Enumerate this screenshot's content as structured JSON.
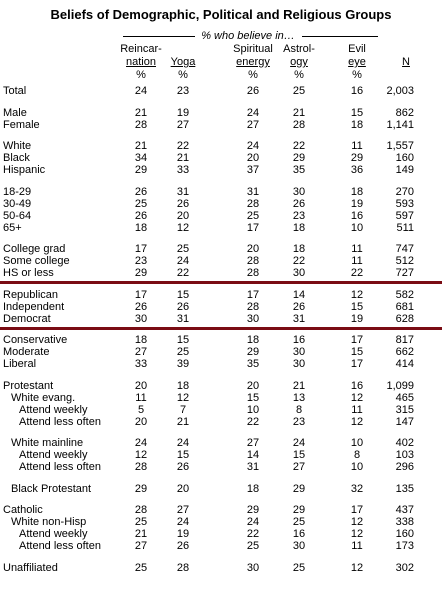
{
  "title": "Beliefs of Demographic, Political and Religious Groups",
  "header": {
    "super": "% who believe in…",
    "columns": [
      {
        "line1": "Reincar-",
        "line2": "nation",
        "unit": "%"
      },
      {
        "line2": "Yoga",
        "unit": "%"
      },
      {
        "line1": "Spiritual",
        "line2": "energy",
        "unit": "%"
      },
      {
        "line1": "Astrol-",
        "line2": "ogy",
        "unit": "%"
      },
      {
        "line1": "Evil",
        "line2": "eye",
        "unit": "%"
      },
      {
        "line2": "N"
      }
    ]
  },
  "groups": [
    {
      "rows": [
        {
          "label": "Total",
          "values": [
            24,
            23,
            26,
            25,
            16
          ],
          "n": "2,003"
        }
      ]
    },
    {
      "rows": [
        {
          "label": "Male",
          "values": [
            21,
            19,
            24,
            21,
            15
          ],
          "n": "862"
        },
        {
          "label": "Female",
          "values": [
            28,
            27,
            27,
            28,
            18
          ],
          "n": "1,141"
        }
      ]
    },
    {
      "rows": [
        {
          "label": "White",
          "values": [
            21,
            22,
            24,
            22,
            11
          ],
          "n": "1,557"
        },
        {
          "label": "Black",
          "values": [
            34,
            21,
            20,
            29,
            29
          ],
          "n": "160"
        },
        {
          "label": "Hispanic",
          "values": [
            29,
            33,
            37,
            35,
            36
          ],
          "n": "149"
        }
      ]
    },
    {
      "rows": [
        {
          "label": "18-29",
          "values": [
            26,
            31,
            31,
            30,
            18
          ],
          "n": "270"
        },
        {
          "label": "30-49",
          "values": [
            25,
            26,
            28,
            26,
            19
          ],
          "n": "593"
        },
        {
          "label": "50-64",
          "values": [
            26,
            20,
            25,
            23,
            16
          ],
          "n": "597"
        },
        {
          "label": "65+",
          "values": [
            18,
            12,
            17,
            18,
            10
          ],
          "n": "511"
        }
      ]
    },
    {
      "rows": [
        {
          "label": "College grad",
          "values": [
            17,
            25,
            20,
            18,
            11
          ],
          "n": "747"
        },
        {
          "label": "Some college",
          "values": [
            23,
            24,
            28,
            22,
            11
          ],
          "n": "512"
        },
        {
          "label": "HS or less",
          "values": [
            29,
            22,
            28,
            30,
            22
          ],
          "n": "727"
        }
      ]
    },
    {
      "rows": [
        {
          "label": "Republican",
          "values": [
            17,
            15,
            17,
            14,
            12
          ],
          "n": "582"
        },
        {
          "label": "Independent",
          "values": [
            26,
            26,
            28,
            26,
            15
          ],
          "n": "681"
        },
        {
          "label": "Democrat",
          "values": [
            30,
            31,
            30,
            31,
            19
          ],
          "n": "628"
        }
      ]
    },
    {
      "rows": [
        {
          "label": "Conservative",
          "values": [
            18,
            15,
            18,
            16,
            17
          ],
          "n": "817"
        },
        {
          "label": "Moderate",
          "values": [
            27,
            25,
            29,
            30,
            15
          ],
          "n": "662"
        },
        {
          "label": "Liberal",
          "values": [
            33,
            39,
            35,
            30,
            17
          ],
          "n": "414"
        }
      ]
    },
    {
      "rows": [
        {
          "label": "Protestant",
          "values": [
            20,
            18,
            20,
            21,
            16
          ],
          "n": "1,099"
        },
        {
          "label": "White evang.",
          "values": [
            11,
            12,
            15,
            13,
            12
          ],
          "n": "465"
        },
        {
          "label": "Attend weekly",
          "values": [
            5,
            7,
            10,
            8,
            11
          ],
          "n": "315"
        },
        {
          "label": "Attend less often",
          "values": [
            20,
            21,
            22,
            23,
            12
          ],
          "n": "147"
        }
      ]
    },
    {
      "rows": [
        {
          "label": "White mainline",
          "values": [
            24,
            24,
            27,
            24,
            10
          ],
          "n": "402"
        },
        {
          "label": "Attend weekly",
          "values": [
            12,
            15,
            14,
            15,
            8
          ],
          "n": "103"
        },
        {
          "label": "Attend less often",
          "values": [
            28,
            26,
            31,
            27,
            10
          ],
          "n": "296"
        }
      ]
    },
    {
      "rows": [
        {
          "label": "Black Protestant",
          "values": [
            29,
            20,
            18,
            29,
            32
          ],
          "n": "135"
        }
      ]
    },
    {
      "rows": [
        {
          "label": "Catholic",
          "values": [
            28,
            27,
            29,
            29,
            17
          ],
          "n": "437"
        },
        {
          "label": "White non-Hisp",
          "values": [
            25,
            24,
            24,
            25,
            12
          ],
          "n": "338"
        },
        {
          "label": "Attend weekly",
          "values": [
            21,
            19,
            22,
            16,
            12
          ],
          "n": "160"
        },
        {
          "label": "Attend less often",
          "values": [
            27,
            26,
            25,
            30,
            11
          ],
          "n": "173"
        }
      ]
    },
    {
      "rows": [
        {
          "label": "Unaffiliated",
          "values": [
            25,
            28,
            30,
            25,
            12
          ],
          "n": "302"
        }
      ]
    }
  ]
}
